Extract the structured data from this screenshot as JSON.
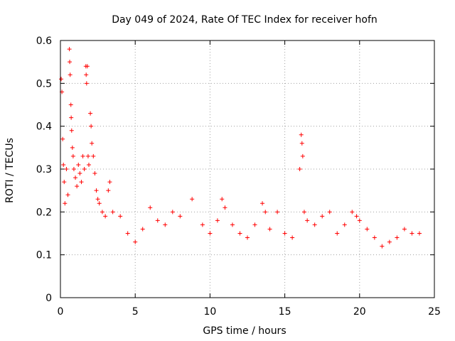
{
  "chart_data": {
    "type": "scatter",
    "title": "Day 049 of 2024, Rate Of TEC Index for receiver hofn",
    "xlabel": "GPS time / hours",
    "ylabel": "ROTI / TECUs",
    "xlim": [
      0,
      25
    ],
    "ylim": [
      0,
      0.6
    ],
    "xticks": [
      "0",
      "5",
      "10",
      "15",
      "20",
      "25"
    ],
    "yticks": [
      "0",
      "0.1",
      "0.2",
      "0.3",
      "0.4",
      "0.5",
      "0.6"
    ],
    "grid": true,
    "marker": "+",
    "color": "#ff0000",
    "series": [
      {
        "points": [
          [
            0.05,
            0.51
          ],
          [
            0.1,
            0.48
          ],
          [
            0.15,
            0.37
          ],
          [
            0.2,
            0.31
          ],
          [
            0.25,
            0.27
          ],
          [
            0.3,
            0.22
          ],
          [
            0.4,
            0.3
          ],
          [
            0.5,
            0.24
          ],
          [
            0.6,
            0.58
          ],
          [
            0.62,
            0.55
          ],
          [
            0.65,
            0.52
          ],
          [
            0.7,
            0.45
          ],
          [
            0.72,
            0.42
          ],
          [
            0.75,
            0.39
          ],
          [
            0.8,
            0.35
          ],
          [
            0.85,
            0.33
          ],
          [
            0.9,
            0.3
          ],
          [
            1.0,
            0.28
          ],
          [
            1.1,
            0.26
          ],
          [
            1.2,
            0.31
          ],
          [
            1.3,
            0.29
          ],
          [
            1.4,
            0.27
          ],
          [
            1.5,
            0.33
          ],
          [
            1.6,
            0.3
          ],
          [
            1.7,
            0.54
          ],
          [
            1.72,
            0.52
          ],
          [
            1.75,
            0.5
          ],
          [
            1.8,
            0.54
          ],
          [
            1.85,
            0.33
          ],
          [
            1.9,
            0.31
          ],
          [
            2.0,
            0.43
          ],
          [
            2.05,
            0.4
          ],
          [
            2.1,
            0.36
          ],
          [
            2.2,
            0.33
          ],
          [
            2.3,
            0.29
          ],
          [
            2.4,
            0.25
          ],
          [
            2.5,
            0.23
          ],
          [
            2.6,
            0.22
          ],
          [
            2.8,
            0.2
          ],
          [
            3.0,
            0.19
          ],
          [
            3.2,
            0.25
          ],
          [
            3.3,
            0.27
          ],
          [
            3.5,
            0.2
          ],
          [
            4.0,
            0.19
          ],
          [
            4.5,
            0.15
          ],
          [
            5.0,
            0.13
          ],
          [
            5.5,
            0.16
          ],
          [
            6.0,
            0.21
          ],
          [
            6.5,
            0.18
          ],
          [
            7.0,
            0.17
          ],
          [
            7.5,
            0.2
          ],
          [
            8.0,
            0.19
          ],
          [
            8.8,
            0.23
          ],
          [
            9.5,
            0.17
          ],
          [
            10.0,
            0.15
          ],
          [
            10.5,
            0.18
          ],
          [
            10.8,
            0.23
          ],
          [
            11.0,
            0.21
          ],
          [
            11.5,
            0.17
          ],
          [
            12.0,
            0.15
          ],
          [
            12.5,
            0.14
          ],
          [
            13.0,
            0.17
          ],
          [
            13.5,
            0.22
          ],
          [
            13.7,
            0.2
          ],
          [
            14.0,
            0.16
          ],
          [
            14.5,
            0.2
          ],
          [
            15.0,
            0.15
          ],
          [
            15.5,
            0.14
          ],
          [
            16.0,
            0.3
          ],
          [
            16.1,
            0.38
          ],
          [
            16.15,
            0.36
          ],
          [
            16.2,
            0.33
          ],
          [
            16.3,
            0.2
          ],
          [
            16.5,
            0.18
          ],
          [
            17.0,
            0.17
          ],
          [
            17.5,
            0.19
          ],
          [
            18.0,
            0.2
          ],
          [
            18.5,
            0.15
          ],
          [
            19.0,
            0.17
          ],
          [
            19.5,
            0.2
          ],
          [
            19.8,
            0.19
          ],
          [
            20.0,
            0.18
          ],
          [
            20.5,
            0.16
          ],
          [
            21.0,
            0.14
          ],
          [
            21.5,
            0.12
          ],
          [
            22.0,
            0.13
          ],
          [
            22.5,
            0.14
          ],
          [
            23.0,
            0.16
          ],
          [
            23.5,
            0.15
          ],
          [
            24.0,
            0.15
          ]
        ]
      }
    ]
  }
}
